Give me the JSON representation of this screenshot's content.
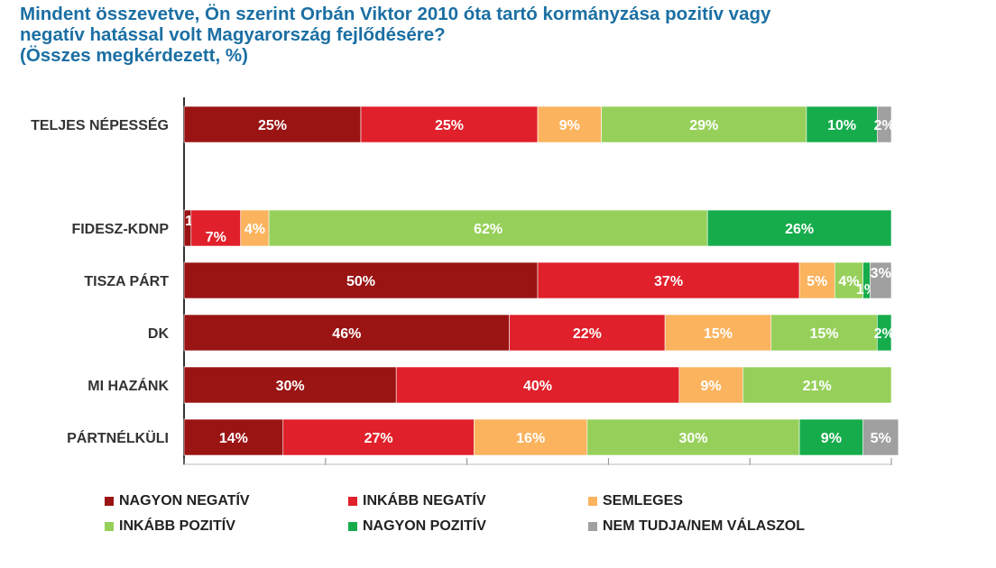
{
  "title_lines": [
    "Mindent összevetve, Ön szerint Orbán Viktor 2010 óta tartó kormányzása pozitív vagy",
    "negatív hatással volt Magyarország fejlődésére?",
    "(Összes megkérdezett, %)"
  ],
  "colors": {
    "nagyon_negativ": "#9a1414",
    "inkabb_negativ": "#e0202a",
    "semleges": "#fbb35e",
    "inkabb_pozitiv": "#96d05a",
    "nagyon_pozitiv": "#16ac4c",
    "nem_tudja": "#a0a0a0"
  },
  "chart_data": {
    "type": "bar",
    "orientation": "horizontal",
    "stacked": true,
    "xlim": [
      0,
      100
    ],
    "grid": false,
    "legend_position": "bottom",
    "categories": [
      "TELJES NÉPESSÉG",
      "FIDESZ-KDNP",
      "TISZA PÁRT",
      "DK",
      "MI HAZÁNK",
      "PÁRTNÉLKÜLI"
    ],
    "series": [
      {
        "name": "NAGYON NEGATÍV",
        "color_key": "nagyon_negativ",
        "values": [
          25,
          1,
          50,
          46,
          30,
          14
        ]
      },
      {
        "name": "INKÁBB NEGATÍV",
        "color_key": "inkabb_negativ",
        "values": [
          25,
          7,
          37,
          22,
          40,
          27
        ]
      },
      {
        "name": "SEMLEGES",
        "color_key": "semleges",
        "values": [
          9,
          4,
          5,
          15,
          9,
          16
        ]
      },
      {
        "name": "INKÁBB POZITÍV",
        "color_key": "inkabb_pozitiv",
        "values": [
          29,
          62,
          4,
          15,
          21,
          30
        ]
      },
      {
        "name": "NAGYON POZITÍV",
        "color_key": "nagyon_pozitiv",
        "values": [
          10,
          26,
          1,
          2,
          0,
          9
        ]
      },
      {
        "name": "NEM TUDJA/NEM VÁLASZOL",
        "color_key": "nem_tudja",
        "values": [
          2,
          0,
          3,
          0,
          0,
          5
        ]
      }
    ]
  }
}
